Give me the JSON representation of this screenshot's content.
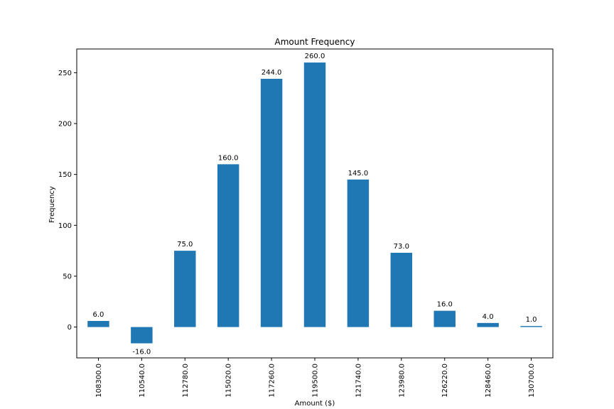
{
  "chart_data": {
    "type": "bar",
    "title": "Amount Frequency",
    "xlabel": "Amount ($)",
    "ylabel": "Frequency",
    "categories": [
      "108300.0",
      "110540.0",
      "112780.0",
      "115020.0",
      "117260.0",
      "119500.0",
      "121740.0",
      "123980.0",
      "126220.0",
      "128460.0",
      "130700.0"
    ],
    "values": [
      6,
      -16,
      75,
      160,
      244,
      260,
      145,
      73,
      16,
      4,
      1
    ],
    "value_labels": [
      "6.0",
      "-16.0",
      "75.0",
      "160.0",
      "244.0",
      "260.0",
      "145.0",
      "73.0",
      "16.0",
      "4.0",
      "1.0"
    ],
    "ylim": [
      -30.3,
      273.3
    ],
    "yticks": [
      0,
      50,
      100,
      150,
      200,
      250
    ],
    "ytick_labels": [
      "0",
      "50",
      "100",
      "150",
      "200",
      "250"
    ],
    "grid": false,
    "bar_color": "#1f77b4"
  }
}
